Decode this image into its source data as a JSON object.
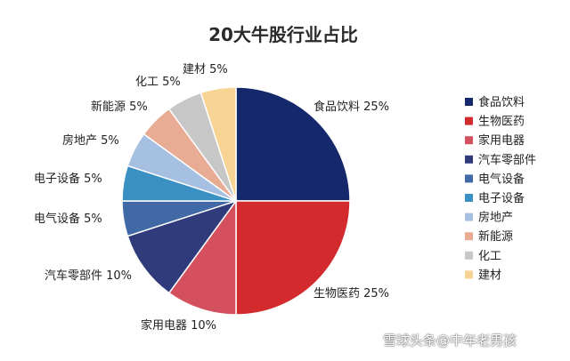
{
  "chart_data": {
    "type": "pie",
    "title": "20大牛股行业占比",
    "categories": [
      "食品饮料",
      "生物医药",
      "家用电器",
      "汽车零部件",
      "电气设备",
      "电子设备",
      "房地产",
      "新能源",
      "化工",
      "建材"
    ],
    "values": [
      25,
      25,
      10,
      10,
      5,
      5,
      5,
      5,
      5,
      5
    ],
    "value_labels": [
      "25%",
      "25%",
      "10%",
      "10%",
      "5%",
      "5%",
      "5%",
      "5%",
      "5%",
      "5%"
    ],
    "colors": [
      "#14286b",
      "#d22a2d",
      "#d4505e",
      "#2f3b7a",
      "#4169a5",
      "#3a8fc3",
      "#a6c0e2",
      "#e8ab93",
      "#c7c7c7",
      "#f7d394"
    ],
    "legend_position": "right"
  },
  "watermark": "雪球头条@中年老男孩"
}
